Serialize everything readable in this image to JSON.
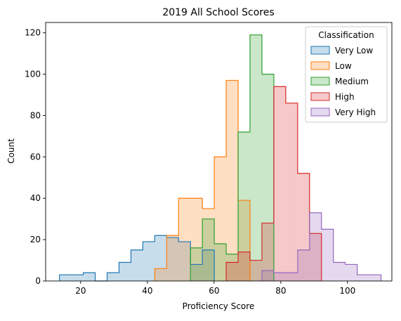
{
  "chart_data": {
    "type": "histogram",
    "title": "2019 All School Scores",
    "xlabel": "Proficiency Score",
    "ylabel": "Count",
    "xlim": [
      9.5,
      113.3
    ],
    "ylim": [
      0,
      125
    ],
    "xticks": [
      20,
      40,
      60,
      80,
      100
    ],
    "yticks": [
      0,
      20,
      40,
      60,
      80,
      100,
      120
    ],
    "bin_width": 3.57,
    "legend": {
      "title": "Classification",
      "position": "top-right"
    },
    "series": [
      {
        "name": "Very Low",
        "color": "#1f77b4",
        "bins": [
          {
            "x0": 13.65,
            "count": 3
          },
          {
            "x0": 17.22,
            "count": 3
          },
          {
            "x0": 20.79,
            "count": 4
          },
          {
            "x0": 24.36,
            "count": 0
          },
          {
            "x0": 27.93,
            "count": 4
          },
          {
            "x0": 31.5,
            "count": 9
          },
          {
            "x0": 35.07,
            "count": 15
          },
          {
            "x0": 38.64,
            "count": 19
          },
          {
            "x0": 42.21,
            "count": 22
          },
          {
            "x0": 45.78,
            "count": 21
          },
          {
            "x0": 49.35,
            "count": 19
          },
          {
            "x0": 52.92,
            "count": 8
          },
          {
            "x0": 56.49,
            "count": 15
          }
        ]
      },
      {
        "name": "Low",
        "color": "#ff7f0e",
        "bins": [
          {
            "x0": 42.21,
            "count": 6
          },
          {
            "x0": 45.78,
            "count": 22
          },
          {
            "x0": 49.35,
            "count": 40
          },
          {
            "x0": 52.92,
            "count": 40
          },
          {
            "x0": 56.49,
            "count": 35
          },
          {
            "x0": 60.06,
            "count": 60
          },
          {
            "x0": 63.63,
            "count": 97
          },
          {
            "x0": 67.2,
            "count": 39
          }
        ]
      },
      {
        "name": "Medium",
        "color": "#2ca02c",
        "bins": [
          {
            "x0": 52.92,
            "count": 16
          },
          {
            "x0": 56.49,
            "count": 30
          },
          {
            "x0": 60.06,
            "count": 18
          },
          {
            "x0": 63.63,
            "count": 13
          },
          {
            "x0": 67.2,
            "count": 72
          },
          {
            "x0": 70.77,
            "count": 119
          },
          {
            "x0": 74.34,
            "count": 100
          }
        ]
      },
      {
        "name": "High",
        "color": "#d62728",
        "bins": [
          {
            "x0": 63.63,
            "count": 9
          },
          {
            "x0": 67.2,
            "count": 14
          },
          {
            "x0": 70.77,
            "count": 10
          },
          {
            "x0": 74.34,
            "count": 28
          },
          {
            "x0": 77.91,
            "count": 94
          },
          {
            "x0": 81.48,
            "count": 86
          },
          {
            "x0": 85.05,
            "count": 52
          },
          {
            "x0": 88.62,
            "count": 23
          }
        ]
      },
      {
        "name": "Very High",
        "color": "#9467bd",
        "bins": [
          {
            "x0": 74.34,
            "count": 5
          },
          {
            "x0": 77.91,
            "count": 4
          },
          {
            "x0": 81.48,
            "count": 4
          },
          {
            "x0": 85.05,
            "count": 15
          },
          {
            "x0": 88.62,
            "count": 33
          },
          {
            "x0": 92.19,
            "count": 25
          },
          {
            "x0": 95.76,
            "count": 9
          },
          {
            "x0": 99.33,
            "count": 8
          },
          {
            "x0": 102.9,
            "count": 3
          },
          {
            "x0": 106.47,
            "count": 3
          }
        ]
      }
    ]
  }
}
